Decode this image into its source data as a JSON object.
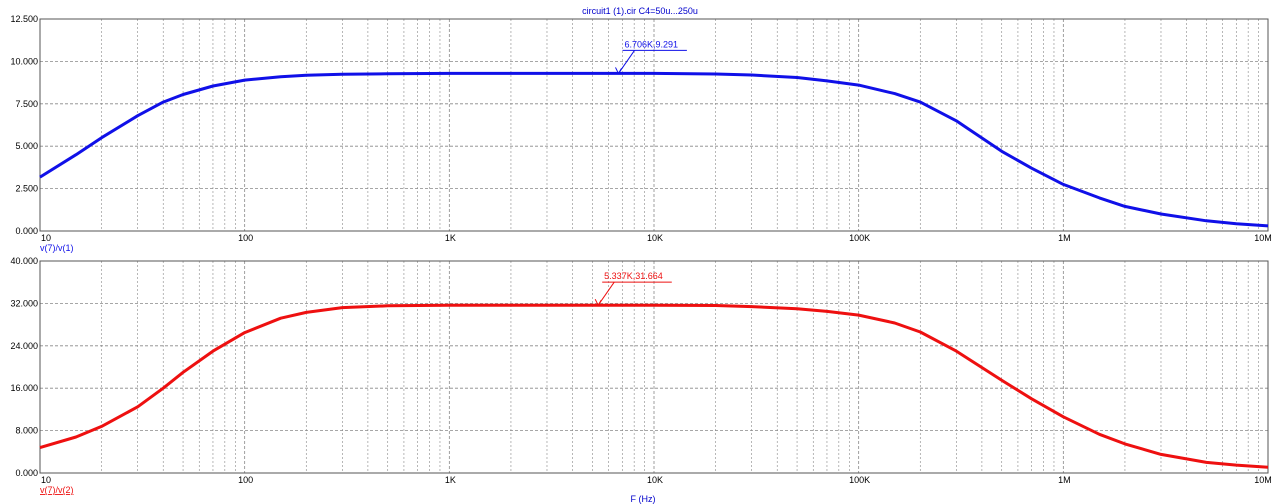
{
  "title": "circuit1 (1).cir C4=50u...250u",
  "x_axis_label": "F (Hz)",
  "colors": {
    "series1": "#1010e8",
    "series2": "#ee1010",
    "grid": "#888888",
    "axis_text": "#000000"
  },
  "chart_data": [
    {
      "type": "line",
      "x_scale": "log",
      "xlim": [
        10,
        10000000
      ],
      "ylim": [
        0,
        12.5
      ],
      "x_ticks": [
        10,
        100,
        1000,
        10000,
        100000,
        1000000,
        10000000
      ],
      "x_tick_labels": [
        "10",
        "100",
        "1K",
        "10K",
        "100K",
        "1M",
        "10M"
      ],
      "y_ticks": [
        0,
        2.5,
        5,
        7.5,
        10,
        12.5
      ],
      "y_tick_labels": [
        "0.000",
        "2.500",
        "5.000",
        "7.500",
        "10.000",
        "12.500"
      ],
      "ylabel": "v(7)/v(1)",
      "grid": true,
      "series": [
        {
          "name": "v(7)/v(1)",
          "x": [
            10,
            15,
            20,
            30,
            40,
            50,
            70,
            100,
            150,
            200,
            300,
            500,
            1000,
            2000,
            5000,
            10000,
            20000,
            30000,
            50000,
            70000,
            100000,
            150000,
            200000,
            300000,
            500000,
            700000,
            1000000,
            1500000,
            2000000,
            3000000,
            5000000,
            7000000,
            10000000
          ],
          "values": [
            3.18,
            4.5,
            5.5,
            6.8,
            7.6,
            8.05,
            8.55,
            8.9,
            9.1,
            9.18,
            9.24,
            9.27,
            9.29,
            9.291,
            9.291,
            9.29,
            9.26,
            9.2,
            9.05,
            8.85,
            8.6,
            8.1,
            7.6,
            6.5,
            4.7,
            3.7,
            2.75,
            1.95,
            1.45,
            1.0,
            0.6,
            0.43,
            0.3
          ]
        }
      ],
      "annotation": {
        "label": "6.706K,9.291",
        "x": 6706,
        "y": 9.291
      }
    },
    {
      "type": "line",
      "x_scale": "log",
      "xlim": [
        10,
        10000000
      ],
      "ylim": [
        0,
        40
      ],
      "x_ticks": [
        10,
        100,
        1000,
        10000,
        100000,
        1000000,
        10000000
      ],
      "x_tick_labels": [
        "10",
        "100",
        "1K",
        "10K",
        "100K",
        "1M",
        "10M"
      ],
      "y_ticks": [
        0,
        8,
        16,
        24,
        32,
        40
      ],
      "y_tick_labels": [
        "0.000",
        "8.000",
        "16.000",
        "24.000",
        "32.000",
        "40.000"
      ],
      "ylabel": "v(7)/v(2)",
      "grid": true,
      "series": [
        {
          "name": "v(7)/v(2)",
          "x": [
            10,
            15,
            20,
            30,
            40,
            50,
            70,
            100,
            150,
            200,
            300,
            500,
            1000,
            2000,
            5000,
            10000,
            20000,
            30000,
            50000,
            70000,
            100000,
            150000,
            200000,
            300000,
            500000,
            700000,
            1000000,
            1500000,
            2000000,
            3000000,
            5000000,
            7000000,
            10000000
          ],
          "values": [
            4.8,
            6.8,
            8.8,
            12.5,
            16.0,
            19.0,
            23.0,
            26.5,
            29.2,
            30.3,
            31.2,
            31.55,
            31.65,
            31.664,
            31.664,
            31.66,
            31.6,
            31.4,
            31.0,
            30.5,
            29.8,
            28.3,
            26.6,
            23.0,
            17.5,
            14.0,
            10.6,
            7.3,
            5.5,
            3.5,
            2.0,
            1.5,
            1.1
          ]
        }
      ],
      "annotation": {
        "label": "5.337K,31.664",
        "x": 5337,
        "y": 31.664
      }
    }
  ]
}
